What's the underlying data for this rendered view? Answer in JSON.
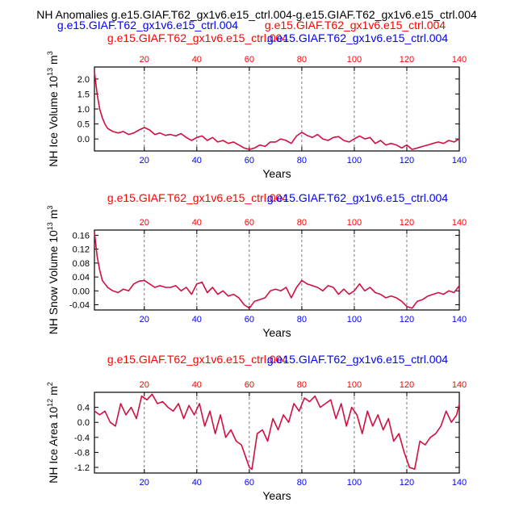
{
  "figure": {
    "title": "NH Anomalies g.e15.GIAF.T62_gx1v6.e15_ctrl.004-g.e15.GIAF.T62_gx1v6.e15_ctrl.004",
    "colors": {
      "line": "#d01040",
      "case_label": "#ff0000",
      "ctrl_label": "#0000ff",
      "axis": "#000000",
      "grid": "#555555"
    }
  },
  "chart_data": [
    {
      "type": "line",
      "case_label": "g.e15.GIAF.T62_gx1v6.e15_ctrl.004",
      "ctrl_label": "g.e15.GIAF.T62_gx1v6.e15_ctrl.004",
      "xlabel": "Years",
      "ylabel": "NH Ice Volume 10",
      "ylabel_exp": "13",
      "ylabel_unit": "m",
      "ylabel_unit_exp": "3",
      "xlim": [
        1,
        140
      ],
      "ylim": [
        -0.4,
        2.4
      ],
      "xticks": [
        20,
        40,
        60,
        80,
        100,
        120,
        140
      ],
      "yticks": [
        -0.0,
        0.5,
        1.0,
        1.5,
        2.0
      ],
      "ytick_labels": [
        "0.0",
        "0.5",
        "1.0",
        "1.5",
        "2.0"
      ],
      "top_axis_color": "red",
      "grid": "vertical dashed",
      "series": [
        {
          "x": [
            1,
            2,
            3,
            4,
            5,
            6,
            7,
            8,
            10,
            12,
            14,
            16,
            18,
            20,
            22,
            24,
            26,
            28,
            30,
            32,
            34,
            36,
            38,
            40,
            42,
            44,
            46,
            48,
            50,
            52,
            54,
            56,
            58,
            60,
            62,
            64,
            66,
            68,
            70,
            72,
            74,
            76,
            78,
            80,
            82,
            84,
            86,
            88,
            90,
            92,
            94,
            96,
            98,
            100,
            102,
            104,
            106,
            108,
            110,
            112,
            114,
            116,
            118,
            120,
            122,
            124,
            126,
            128,
            130,
            132,
            134,
            136,
            138,
            140
          ],
          "values": [
            2.25,
            1.5,
            1.0,
            0.7,
            0.5,
            0.35,
            0.3,
            0.25,
            0.2,
            0.25,
            0.15,
            0.2,
            0.3,
            0.38,
            0.3,
            0.15,
            0.2,
            0.12,
            0.15,
            0.1,
            0.18,
            0.05,
            -0.05,
            0.05,
            0.1,
            -0.05,
            0.05,
            -0.1,
            -0.05,
            -0.15,
            -0.1,
            -0.2,
            -0.3,
            -0.35,
            -0.3,
            -0.2,
            -0.25,
            -0.1,
            -0.1,
            0.0,
            -0.05,
            -0.15,
            0.1,
            0.22,
            0.12,
            0.05,
            0.15,
            0.0,
            -0.05,
            0.05,
            0.08,
            -0.05,
            -0.1,
            0.0,
            0.1,
            0.0,
            0.05,
            -0.15,
            -0.05,
            -0.2,
            -0.15,
            -0.2,
            -0.3,
            -0.2,
            -0.35,
            -0.3,
            -0.25,
            -0.2,
            -0.15,
            -0.1,
            -0.15,
            -0.05,
            -0.1,
            0.0
          ]
        }
      ]
    },
    {
      "type": "line",
      "case_label": "g.e15.GIAF.T62_gx1v6.e15_ctrl.004",
      "ctrl_label": "g.e15.GIAF.T62_gx1v6.e15_ctrl.004",
      "xlabel": "Years",
      "ylabel": "NH Snow Volume 10",
      "ylabel_exp": "13",
      "ylabel_unit": "m",
      "ylabel_unit_exp": "3",
      "xlim": [
        1,
        140
      ],
      "ylim": [
        -0.055,
        0.175
      ],
      "xticks": [
        20,
        40,
        60,
        80,
        100,
        120,
        140
      ],
      "yticks": [
        -0.04,
        0.0,
        0.04,
        0.08,
        0.12,
        0.16
      ],
      "ytick_labels": [
        "-0.04",
        "0.00",
        "0.04",
        "0.08",
        "0.12",
        "0.16"
      ],
      "top_axis_color": "red",
      "grid": "vertical dashed",
      "series": [
        {
          "x": [
            1,
            2,
            3,
            4,
            5,
            6,
            8,
            10,
            12,
            14,
            16,
            18,
            20,
            22,
            24,
            26,
            28,
            30,
            32,
            34,
            36,
            38,
            40,
            42,
            44,
            46,
            48,
            50,
            52,
            54,
            56,
            58,
            60,
            62,
            64,
            66,
            68,
            70,
            72,
            74,
            76,
            78,
            80,
            82,
            84,
            86,
            88,
            90,
            92,
            94,
            96,
            98,
            100,
            102,
            104,
            106,
            108,
            110,
            112,
            114,
            116,
            118,
            120,
            122,
            124,
            126,
            128,
            130,
            132,
            134,
            136,
            138,
            140
          ],
          "values": [
            0.17,
            0.1,
            0.06,
            0.03,
            0.02,
            0.01,
            0.0,
            -0.005,
            0.005,
            0.0,
            0.02,
            0.028,
            0.03,
            0.02,
            0.01,
            0.015,
            0.01,
            0.01,
            0.015,
            0.0,
            0.01,
            -0.01,
            0.02,
            0.025,
            -0.005,
            0.01,
            -0.01,
            0.0,
            -0.015,
            -0.01,
            -0.02,
            -0.04,
            -0.05,
            -0.03,
            -0.025,
            -0.02,
            0.0,
            0.005,
            0.0,
            0.01,
            -0.02,
            0.01,
            0.03,
            0.02,
            0.015,
            0.01,
            0.0,
            0.015,
            0.01,
            -0.01,
            0.005,
            -0.01,
            0.0,
            0.02,
            0.0,
            0.01,
            -0.005,
            -0.01,
            -0.02,
            -0.015,
            -0.02,
            -0.03,
            -0.045,
            -0.05,
            -0.03,
            -0.025,
            -0.015,
            -0.01,
            -0.005,
            -0.01,
            0.0,
            -0.005,
            0.015
          ]
        }
      ]
    },
    {
      "type": "line",
      "case_label": "g.e15.GIAF.T62_gx1v6.e15_ctrl.004",
      "ctrl_label": "g.e15.GIAF.T62_gx1v6.e15_ctrl.004",
      "xlabel": "Years",
      "ylabel": "NH Ice Area 10",
      "ylabel_exp": "12",
      "ylabel_unit": "m",
      "ylabel_unit_exp": "2",
      "xlim": [
        1,
        140
      ],
      "ylim": [
        -1.35,
        0.8
      ],
      "xticks": [
        20,
        40,
        60,
        80,
        100,
        120,
        140
      ],
      "yticks": [
        -1.2,
        -0.8,
        -0.4,
        0.0,
        0.4
      ],
      "ytick_labels": [
        "-1.2",
        "-0.8",
        "-0.4",
        "0.0",
        "0.4"
      ],
      "top_axis_color": "red",
      "grid": "vertical dashed",
      "series": [
        {
          "x": [
            1,
            3,
            5,
            7,
            9,
            11,
            13,
            15,
            17,
            19,
            21,
            23,
            25,
            27,
            29,
            31,
            33,
            35,
            37,
            39,
            41,
            43,
            45,
            47,
            49,
            51,
            53,
            55,
            57,
            59,
            60,
            61,
            63,
            65,
            67,
            69,
            71,
            73,
            75,
            77,
            79,
            81,
            83,
            85,
            87,
            89,
            91,
            93,
            95,
            97,
            99,
            101,
            103,
            105,
            107,
            109,
            111,
            113,
            115,
            117,
            119,
            120,
            121,
            123,
            125,
            127,
            129,
            131,
            133,
            135,
            137,
            139,
            140
          ],
          "values": [
            0.3,
            0.2,
            0.3,
            0.0,
            -0.1,
            0.5,
            0.2,
            0.4,
            0.1,
            0.7,
            0.6,
            0.75,
            0.5,
            0.55,
            0.4,
            0.3,
            0.5,
            0.1,
            0.45,
            0.2,
            0.5,
            -0.1,
            0.3,
            -0.3,
            0.2,
            -0.4,
            -0.2,
            -0.5,
            -0.6,
            -1.0,
            -1.2,
            -1.25,
            -0.3,
            -0.2,
            -0.5,
            0.1,
            -0.2,
            0.2,
            0.0,
            0.5,
            0.3,
            0.65,
            0.55,
            0.7,
            0.4,
            0.5,
            0.6,
            0.1,
            0.5,
            -0.1,
            0.4,
            0.2,
            -0.3,
            0.3,
            -0.1,
            0.2,
            -0.2,
            0.1,
            -0.5,
            -0.3,
            -0.8,
            -1.0,
            -1.2,
            -1.25,
            -0.5,
            -0.6,
            -0.4,
            -0.3,
            -0.1,
            0.3,
            0.0,
            0.2,
            0.5
          ]
        }
      ]
    }
  ]
}
